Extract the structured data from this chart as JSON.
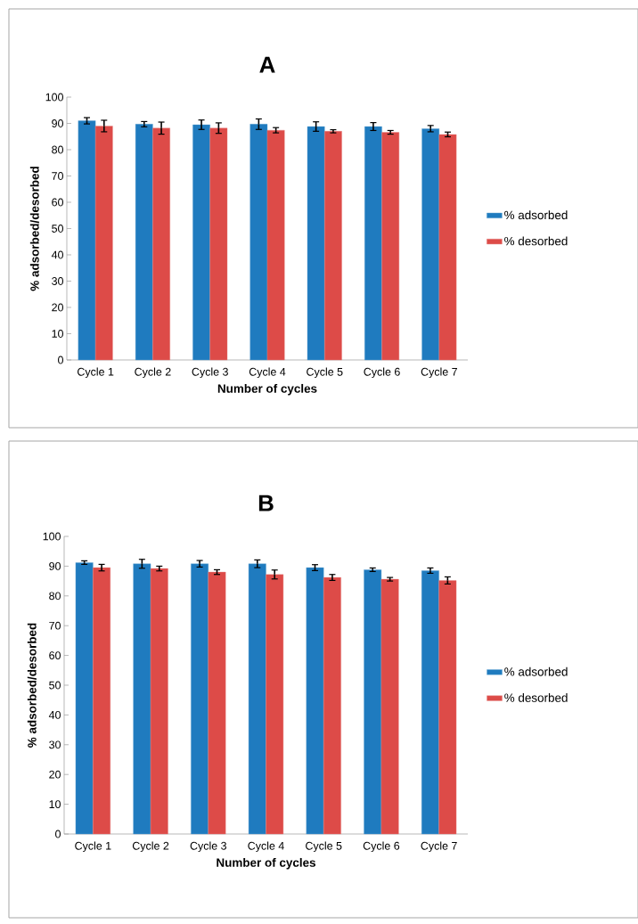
{
  "chart_data": [
    {
      "type": "bar",
      "title": "A",
      "xlabel": "Number of cycles",
      "ylabel": "% adsorbed/desorbed",
      "categories": [
        "Cycle 1",
        "Cycle 2",
        "Cycle 3",
        "Cycle 4",
        "Cycle 5",
        "Cycle 6",
        "Cycle 7"
      ],
      "series": [
        {
          "name": "% adsorbed",
          "color": "#1f7bbf",
          "values": [
            91,
            89.7,
            89.5,
            89.7,
            88.8,
            88.8,
            88
          ],
          "errors": [
            1.2,
            1,
            1.8,
            2,
            1.8,
            1.5,
            1.2
          ]
        },
        {
          "name": "% desorbed",
          "color": "#dd4b48",
          "values": [
            89,
            88.2,
            88.2,
            87.4,
            87,
            86.6,
            85.8
          ],
          "errors": [
            2.2,
            2.3,
            2,
            1,
            0.6,
            0.7,
            0.9
          ]
        }
      ],
      "ylim": [
        0,
        100
      ],
      "yticks": [
        0,
        10,
        20,
        30,
        40,
        50,
        60,
        70,
        80,
        90,
        100
      ],
      "legend": "right"
    },
    {
      "type": "bar",
      "title": "B",
      "xlabel": "Number of cycles",
      "ylabel": "% adsorbed/desorbed",
      "categories": [
        "Cycle 1",
        "Cycle 2",
        "Cycle 3",
        "Cycle 4",
        "Cycle 5",
        "Cycle 6",
        "Cycle 7"
      ],
      "series": [
        {
          "name": "% adsorbed",
          "color": "#1f7bbf",
          "values": [
            91.2,
            90.8,
            90.8,
            90.8,
            89.5,
            88.8,
            88.5
          ],
          "errors": [
            0.6,
            1.5,
            1.1,
            1.3,
            1,
            0.6,
            0.9
          ]
        },
        {
          "name": "% desorbed",
          "color": "#dd4b48",
          "values": [
            89.5,
            89.2,
            88,
            87.2,
            86.2,
            85.6,
            85.2
          ],
          "errors": [
            1.1,
            0.8,
            0.8,
            1.5,
            1,
            0.6,
            1.2
          ]
        }
      ],
      "ylim": [
        0,
        100
      ],
      "yticks": [
        0,
        10,
        20,
        30,
        40,
        50,
        60,
        70,
        80,
        90,
        100
      ],
      "legend": "right"
    }
  ]
}
